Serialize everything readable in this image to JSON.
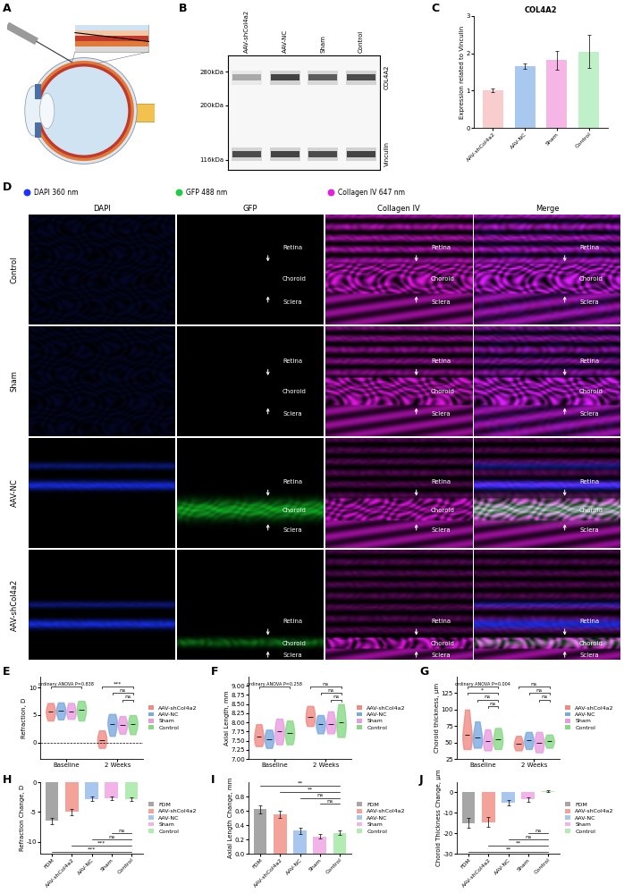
{
  "chart_data": [
    {
      "panel": "B",
      "type": "blot",
      "categories": [
        "AAV-shCol4a2",
        "AAV-NC",
        "Sham",
        "Control"
      ],
      "log": "y",
      "ylim": [
        105,
        330
      ],
      "yticks": [
        {
          "value": 116,
          "label": "116kDa"
        },
        {
          "value": 200,
          "label": "200kDa"
        },
        {
          "value": 280,
          "label": "280kDa"
        }
      ],
      "bands": [
        {
          "name": "COL4A2",
          "kda": 265,
          "intensity": [
            0.35,
            0.9,
            0.75,
            0.85
          ]
        },
        {
          "name": "Vinculin",
          "kda": 123,
          "intensity": [
            0.85,
            0.9,
            0.85,
            0.9
          ]
        }
      ]
    },
    {
      "panel": "C",
      "type": "bar",
      "title": "COL4A2",
      "categories": [
        "AAV-shCol4a2",
        "AAV-NC",
        "Sham",
        "Control"
      ],
      "values": [
        1.0,
        1.65,
        1.82,
        2.05
      ],
      "errors": [
        0.05,
        0.07,
        0.25,
        0.45
      ],
      "colors": [
        "#f9cdcd",
        "#a9c8f0",
        "#f5b5e5",
        "#bff0c8"
      ],
      "y_label": "Expression related to Vinculin",
      "ylim": [
        0,
        3
      ],
      "yticks": [
        0,
        1,
        2,
        3
      ]
    },
    {
      "panel": "E",
      "type": "violin",
      "categories": [
        "Baseline",
        "2 Weeks"
      ],
      "y_label": "Refraction, D",
      "ylim": [
        -3,
        12
      ],
      "yticks": [
        0,
        5,
        10
      ],
      "reference_line": 0,
      "legend": "right",
      "series": [
        {
          "name": "AAV-shCol4a2",
          "color": "#f08a84",
          "values": [
            [
              4.0,
              5.0,
              5.6,
              6.2,
              7.2
            ],
            [
              -1.0,
              0.0,
              0.5,
              1.2,
              2.2
            ]
          ]
        },
        {
          "name": "AAV-NC",
          "color": "#7aa9e0",
          "values": [
            [
              4.2,
              5.2,
              5.8,
              6.3,
              7.3
            ],
            [
              1.2,
              2.6,
              3.4,
              4.2,
              5.2
            ]
          ]
        },
        {
          "name": "Sham",
          "color": "#e99be0",
          "values": [
            [
              4.3,
              5.0,
              5.6,
              6.3,
              7.2
            ],
            [
              1.6,
              2.6,
              3.2,
              3.8,
              4.8
            ]
          ]
        },
        {
          "name": "Control",
          "color": "#86d986",
          "values": [
            [
              4.0,
              5.2,
              5.9,
              6.6,
              7.6
            ],
            [
              1.5,
              2.7,
              3.4,
              4.0,
              5.0
            ]
          ]
        }
      ],
      "comparisons": [
        {
          "group": "Baseline",
          "label": "ordinary ANOVA P=0.838"
        },
        {
          "group": "2 Weeks",
          "from": "AAV-shCol4a2",
          "to": "Control",
          "label": "***"
        },
        {
          "group": "2 Weeks",
          "from": "AAV-NC",
          "to": "Control",
          "label": "ns"
        },
        {
          "group": "2 Weeks",
          "from": "Sham",
          "to": "Control",
          "label": "ns"
        }
      ]
    },
    {
      "panel": "F",
      "type": "violin",
      "categories": [
        "Baseline",
        "2 Weeks"
      ],
      "y_label": "Axial Length, mm",
      "ylim": [
        7.0,
        9.25
      ],
      "yticks": [
        {
          "value": 7.0,
          "label": "7.00"
        },
        {
          "value": 7.25,
          "label": "7.25"
        },
        {
          "value": 7.5,
          "label": "7.50"
        },
        {
          "value": 7.75,
          "label": "7.75"
        },
        {
          "value": 8.0,
          "label": "8.00"
        },
        {
          "value": 8.25,
          "label": "8.25"
        },
        {
          "value": 8.5,
          "label": "8.50"
        },
        {
          "value": 8.75,
          "label": "8.75"
        },
        {
          "value": 9.0,
          "label": "9.00"
        }
      ],
      "legend": "right",
      "series": [
        {
          "name": "AAV-shCol4a2",
          "color": "#f08a84",
          "values": [
            [
              7.35,
              7.5,
              7.6,
              7.75,
              7.95
            ],
            [
              7.9,
              8.05,
              8.15,
              8.3,
              8.45
            ]
          ]
        },
        {
          "name": "AAV-NC",
          "color": "#7aa9e0",
          "values": [
            [
              7.3,
              7.45,
              7.55,
              7.65,
              7.8
            ],
            [
              7.7,
              7.85,
              7.95,
              8.05,
              8.2
            ]
          ]
        },
        {
          "name": "Sham",
          "color": "#e99be0",
          "values": [
            [
              7.4,
              7.6,
              7.75,
              7.9,
              8.1
            ],
            [
              7.7,
              7.85,
              7.95,
              8.1,
              8.3
            ]
          ]
        },
        {
          "name": "Control",
          "color": "#86d986",
          "values": [
            [
              7.4,
              7.6,
              7.7,
              7.85,
              8.05
            ],
            [
              7.6,
              7.8,
              8.0,
              8.2,
              8.5
            ]
          ]
        }
      ],
      "comparisons": [
        {
          "group": "Baseline",
          "label": "ordinary ANOVA P=0.258"
        },
        {
          "group": "2 Weeks",
          "from": "AAV-shCol4a2",
          "to": "Control",
          "label": "ns"
        },
        {
          "group": "2 Weeks",
          "from": "AAV-NC",
          "to": "Control",
          "label": "ns"
        },
        {
          "group": "2 Weeks",
          "from": "Sham",
          "to": "Control",
          "label": "ns"
        }
      ]
    },
    {
      "panel": "G",
      "type": "violin",
      "categories": [
        "Baseline",
        "2 Weeks"
      ],
      "y_label": "Choroid thickness, μm",
      "ylim": [
        25,
        150
      ],
      "yticks": [
        25,
        50,
        75,
        100,
        125
      ],
      "legend": "right",
      "series": [
        {
          "name": "AAV-shCol4a2",
          "color": "#f08a84",
          "values": [
            [
              40,
              52,
              62,
              75,
              100
            ],
            [
              38,
              44,
              48,
              52,
              60
            ]
          ]
        },
        {
          "name": "AAV-NC",
          "color": "#7aa9e0",
          "values": [
            [
              42,
              50,
              58,
              66,
              82
            ],
            [
              40,
              48,
              53,
              58,
              66
            ]
          ]
        },
        {
          "name": "Sham",
          "color": "#e99be0",
          "values": [
            [
              38,
              45,
              52,
              58,
              70
            ],
            [
              35,
              42,
              50,
              56,
              66
            ]
          ]
        },
        {
          "name": "Control",
          "color": "#86d986",
          "values": [
            [
              40,
              48,
              55,
              62,
              72
            ],
            [
              42,
              48,
              52,
              56,
              62
            ]
          ]
        }
      ],
      "comparisons": [
        {
          "group": "Baseline",
          "label": "ordinary ANOVA P=0.004"
        },
        {
          "group": "Baseline",
          "from": "AAV-shCol4a2",
          "to": "Control",
          "label": "*"
        },
        {
          "group": "Baseline",
          "from": "AAV-NC",
          "to": "Control",
          "label": "ns"
        },
        {
          "group": "Baseline",
          "from": "Sham",
          "to": "Control",
          "label": "ns"
        },
        {
          "group": "2 Weeks",
          "from": "AAV-shCol4a2",
          "to": "Control",
          "label": "ns"
        },
        {
          "group": "2 Weeks",
          "from": "AAV-NC",
          "to": "Control",
          "label": "ns"
        },
        {
          "group": "2 Weeks",
          "from": "Sham",
          "to": "Control",
          "label": "ns"
        }
      ]
    },
    {
      "panel": "H",
      "type": "bar",
      "categories": [
        "FDM",
        "AAV-shCol4a2",
        "AAV-NC",
        "Sham",
        "Control"
      ],
      "values": [
        -6.5,
        -5.0,
        -2.8,
        -2.7,
        -2.9
      ],
      "errors": [
        0.5,
        0.5,
        0.35,
        0.3,
        0.3
      ],
      "colors": [
        "#a6a6a6",
        "#f4a39b",
        "#a9c6ef",
        "#f1b3e8",
        "#b3ecb3"
      ],
      "y_label": "Refraction Change, D",
      "ylim": [
        -12,
        0
      ],
      "yticks": [
        -10,
        -5,
        0
      ],
      "legend": "right",
      "comparisons": [
        {
          "from": "FDM",
          "to": "Control",
          "label": "***"
        },
        {
          "from": "AAV-shCol4a2",
          "to": "Control",
          "label": "***"
        },
        {
          "from": "AAV-NC",
          "to": "Control",
          "label": "ns"
        },
        {
          "from": "Sham",
          "to": "Control",
          "label": "ns"
        }
      ]
    },
    {
      "panel": "I",
      "type": "bar",
      "categories": [
        "FDM",
        "AAV-shCol4a2",
        "AAV-NC",
        "Sham",
        "Control"
      ],
      "values": [
        0.62,
        0.55,
        0.32,
        0.24,
        0.29
      ],
      "errors": [
        0.06,
        0.05,
        0.04,
        0.03,
        0.03
      ],
      "colors": [
        "#a6a6a6",
        "#f4a39b",
        "#a9c6ef",
        "#f1b3e8",
        "#b3ecb3"
      ],
      "y_label": "Axial Length Change, mm",
      "ylim": [
        0,
        1.0
      ],
      "yticks": [
        {
          "value": 0,
          "label": "0.0"
        },
        {
          "value": 0.2,
          "label": "0.2"
        },
        {
          "value": 0.4,
          "label": "0.4"
        },
        {
          "value": 0.6,
          "label": "0.6"
        },
        {
          "value": 0.8,
          "label": "0.8"
        }
      ],
      "legend": "right",
      "comparisons": [
        {
          "from": "FDM",
          "to": "Control",
          "label": "**"
        },
        {
          "from": "AAV-shCol4a2",
          "to": "Control",
          "label": "**"
        },
        {
          "from": "AAV-NC",
          "to": "Control",
          "label": "ns"
        },
        {
          "from": "Sham",
          "to": "Control",
          "label": "ns"
        }
      ]
    },
    {
      "panel": "J",
      "type": "bar",
      "categories": [
        "FDM",
        "AAV-shCol4a2",
        "AAV-NC",
        "Sham",
        "Control"
      ],
      "values": [
        -15,
        -14.5,
        -5,
        -3.5,
        0.5
      ],
      "errors": [
        2.5,
        2.5,
        1.2,
        1.0,
        0.5
      ],
      "colors": [
        "#a6a6a6",
        "#f4a39b",
        "#a9c6ef",
        "#f1b3e8",
        "#b3ecb3"
      ],
      "y_label": "Choroid Thickness Change, μm",
      "ylim": [
        -30,
        5
      ],
      "yticks": [
        -30,
        -20,
        -10,
        0
      ],
      "legend": "right",
      "comparisons": [
        {
          "from": "FDM",
          "to": "Control",
          "label": "**"
        },
        {
          "from": "AAV-shCol4a2",
          "to": "Control",
          "label": "**"
        },
        {
          "from": "AAV-NC",
          "to": "Control",
          "label": "ns"
        },
        {
          "from": "Sham",
          "to": "Control",
          "label": "ns"
        }
      ]
    }
  ],
  "schematic": {
    "panel": "A"
  },
  "immunofluorescence": {
    "panel": "D",
    "channels": [
      {
        "name": "DAPI 360 nm",
        "color": "#2030ff"
      },
      {
        "name": "GFP 488 nm",
        "color": "#22cc44"
      },
      {
        "name": "Collagen IV 647 nm",
        "color": "#e020e0"
      }
    ],
    "columns": [
      "DAPI",
      "GFP",
      "Collagen IV",
      "Merge"
    ],
    "rows": [
      "Control",
      "Sham",
      "AAV-NC",
      "AAV-shCol4a2"
    ],
    "layer_labels": [
      "Retina",
      "Choroid",
      "Sclera"
    ],
    "labeled_columns": [
      "GFP",
      "Collagen IV",
      "Merge"
    ]
  }
}
